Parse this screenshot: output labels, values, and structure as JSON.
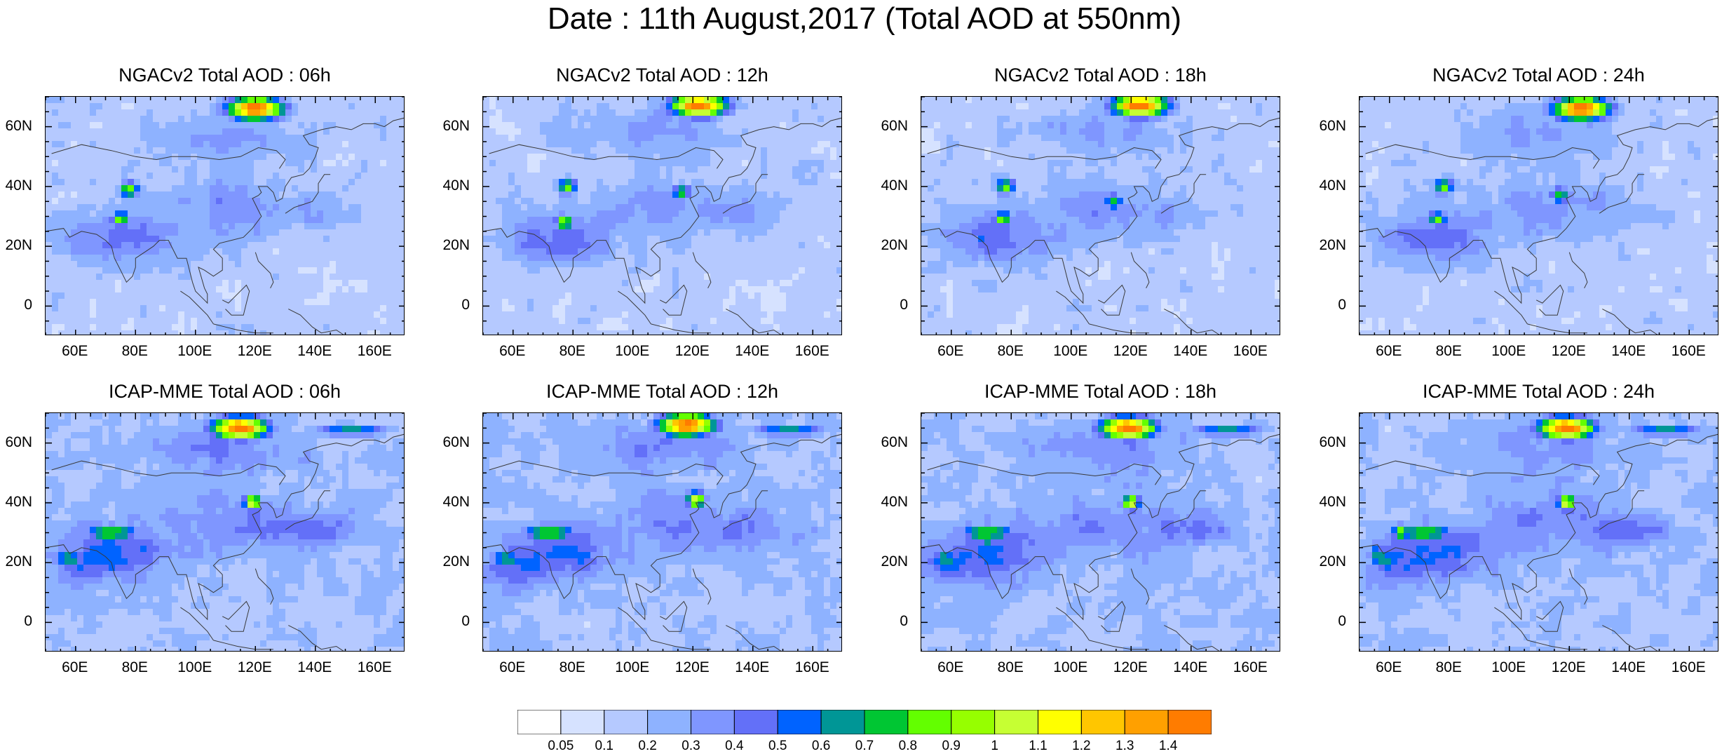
{
  "title": "Date : 11th August,2017 (Total AOD at 550nm)",
  "colorbar": {
    "labels": [
      "0.05",
      "0.1",
      "0.2",
      "0.3",
      "0.4",
      "0.5",
      "0.6",
      "0.7",
      "0.8",
      "0.9",
      "1",
      "1.1",
      "1.2",
      "1.3",
      "1.4"
    ],
    "colors": [
      "#ffffff",
      "#d6e2ff",
      "#b5c9ff",
      "#8eb2ff",
      "#7f96ff",
      "#6370f8",
      "#0063ff",
      "#009696",
      "#00c633",
      "#63ff00",
      "#96ff00",
      "#c6ff33",
      "#ffff00",
      "#ffc600",
      "#ffa000",
      "#ff7c00",
      "#ff1900"
    ]
  },
  "chart_data": [
    {
      "type": "heatmap",
      "title": "NGACv2 Total AOD : 06h",
      "model": "NGACv2",
      "lead": "06h",
      "xlim": [
        50,
        170
      ],
      "ylim": [
        -10,
        70
      ],
      "xticks": [
        "60E",
        "80E",
        "100E",
        "120E",
        "140E",
        "160E"
      ],
      "yticks": [
        "60N",
        "40N",
        "20N",
        "0"
      ],
      "features": [
        {
          "lon": 120,
          "lat": 66,
          "value": 1.5
        },
        {
          "lon": 78,
          "lat": 39,
          "value": 0.9
        },
        {
          "lon": 75,
          "lat": 29,
          "value": 0.9
        }
      ]
    },
    {
      "type": "heatmap",
      "title": "NGACv2 Total AOD : 12h",
      "model": "NGACv2",
      "lead": "12h",
      "xlim": [
        50,
        170
      ],
      "ylim": [
        -10,
        70
      ],
      "xticks": [
        "60E",
        "80E",
        "100E",
        "120E",
        "140E",
        "160E"
      ],
      "yticks": [
        "60N",
        "40N",
        "20N",
        "0"
      ],
      "features": [
        {
          "lon": 122,
          "lat": 67,
          "value": 1.5
        },
        {
          "lon": 78,
          "lat": 40,
          "value": 0.9
        },
        {
          "lon": 77,
          "lat": 28,
          "value": 0.9
        },
        {
          "lon": 116,
          "lat": 38,
          "value": 0.8
        }
      ]
    },
    {
      "type": "heatmap",
      "title": "NGACv2 Total AOD : 18h",
      "model": "NGACv2",
      "lead": "18h",
      "xlim": [
        50,
        170
      ],
      "ylim": [
        -10,
        70
      ],
      "xticks": [
        "60E",
        "80E",
        "100E",
        "120E",
        "140E",
        "160E"
      ],
      "yticks": [
        "60N",
        "40N",
        "20N",
        "0"
      ],
      "features": [
        {
          "lon": 123,
          "lat": 67,
          "value": 1.5
        },
        {
          "lon": 78,
          "lat": 40,
          "value": 0.9
        },
        {
          "lon": 77,
          "lat": 29,
          "value": 0.9
        },
        {
          "lon": 114,
          "lat": 35,
          "value": 0.8
        }
      ]
    },
    {
      "type": "heatmap",
      "title": "NGACv2 Total AOD : 24h",
      "model": "NGACv2",
      "lead": "24h",
      "xlim": [
        50,
        170
      ],
      "ylim": [
        -10,
        70
      ],
      "xticks": [
        "60E",
        "80E",
        "100E",
        "120E",
        "140E",
        "160E"
      ],
      "yticks": [
        "60N",
        "40N",
        "20N",
        "0"
      ],
      "features": [
        {
          "lon": 124,
          "lat": 66,
          "value": 1.5
        },
        {
          "lon": 78,
          "lat": 40,
          "value": 0.9
        },
        {
          "lon": 76,
          "lat": 29,
          "value": 0.9
        },
        {
          "lon": 117,
          "lat": 37,
          "value": 0.8
        }
      ]
    },
    {
      "type": "heatmap",
      "title": "ICAP-MME Total AOD : 06h",
      "model": "ICAP-MME",
      "lead": "06h",
      "xlim": [
        50,
        170
      ],
      "ylim": [
        -10,
        70
      ],
      "xticks": [
        "60E",
        "80E",
        "100E",
        "120E",
        "140E",
        "160E"
      ],
      "yticks": [
        "60N",
        "40N",
        "20N",
        "0"
      ],
      "features": [
        {
          "lon": 115,
          "lat": 65,
          "value": 1.5
        },
        {
          "lon": 119,
          "lat": 40,
          "value": 1.1
        },
        {
          "lon": 75,
          "lat": 30,
          "value": 0.8
        },
        {
          "lon": 57,
          "lat": 22,
          "value": 0.7
        }
      ]
    },
    {
      "type": "heatmap",
      "title": "ICAP-MME Total AOD : 12h",
      "model": "ICAP-MME",
      "lead": "12h",
      "xlim": [
        50,
        170
      ],
      "ylim": [
        -10,
        70
      ],
      "xticks": [
        "60E",
        "80E",
        "100E",
        "120E",
        "140E",
        "160E"
      ],
      "yticks": [
        "60N",
        "40N",
        "20N",
        "0"
      ],
      "features": [
        {
          "lon": 118,
          "lat": 66,
          "value": 1.5
        },
        {
          "lon": 121,
          "lat": 41,
          "value": 1.1
        },
        {
          "lon": 74,
          "lat": 29,
          "value": 0.8
        },
        {
          "lon": 57,
          "lat": 22,
          "value": 0.7
        }
      ]
    },
    {
      "type": "heatmap",
      "title": "ICAP-MME Total AOD : 18h",
      "model": "ICAP-MME",
      "lead": "18h",
      "xlim": [
        50,
        170
      ],
      "ylim": [
        -10,
        70
      ],
      "xticks": [
        "60E",
        "80E",
        "100E",
        "120E",
        "140E",
        "160E"
      ],
      "yticks": [
        "60N",
        "40N",
        "20N",
        "0"
      ],
      "features": [
        {
          "lon": 119,
          "lat": 65,
          "value": 1.5
        },
        {
          "lon": 120,
          "lat": 40,
          "value": 1.1
        },
        {
          "lon": 72,
          "lat": 28,
          "value": 0.8
        },
        {
          "lon": 57,
          "lat": 21,
          "value": 0.7
        }
      ]
    },
    {
      "type": "heatmap",
      "title": "ICAP-MME Total AOD : 24h",
      "model": "ICAP-MME",
      "lead": "24h",
      "xlim": [
        50,
        170
      ],
      "ylim": [
        -10,
        70
      ],
      "xticks": [
        "60E",
        "80E",
        "100E",
        "120E",
        "140E",
        "160E"
      ],
      "yticks": [
        "60N",
        "40N",
        "20N",
        "0"
      ],
      "features": [
        {
          "lon": 119,
          "lat": 65,
          "value": 1.5
        },
        {
          "lon": 119,
          "lat": 40,
          "value": 1.1
        },
        {
          "lon": 64,
          "lat": 30,
          "value": 0.9
        },
        {
          "lon": 56,
          "lat": 23,
          "value": 0.7
        }
      ]
    }
  ]
}
